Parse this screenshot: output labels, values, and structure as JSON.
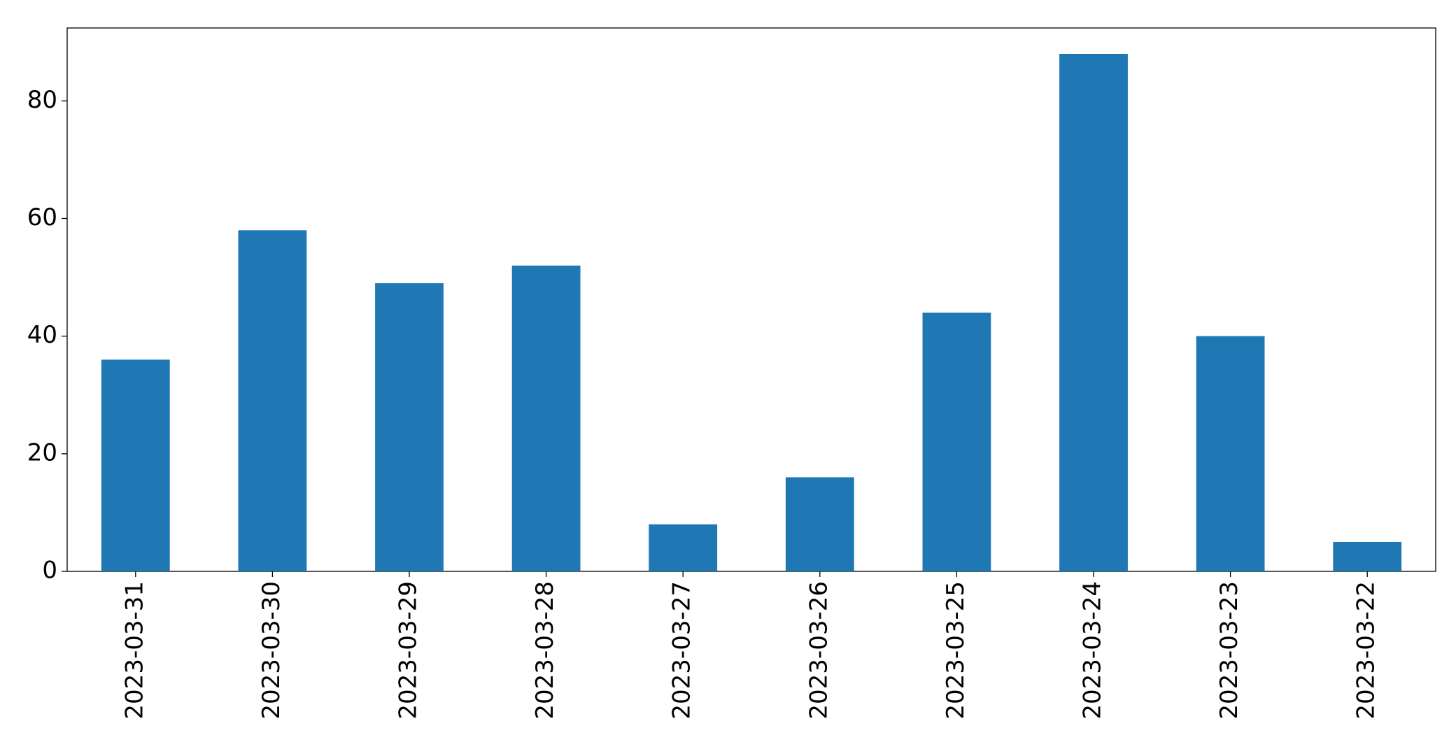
{
  "chart_data": {
    "type": "bar",
    "categories": [
      "2023-03-31",
      "2023-03-30",
      "2023-03-29",
      "2023-03-28",
      "2023-03-27",
      "2023-03-26",
      "2023-03-25",
      "2023-03-24",
      "2023-03-23",
      "2023-03-22"
    ],
    "values": [
      36,
      58,
      49,
      52,
      8,
      16,
      44,
      88,
      40,
      5
    ],
    "color": "#1f77b4",
    "ylim": [
      0,
      92.4
    ],
    "yticks": [
      0,
      20,
      40,
      60,
      80
    ],
    "grid": false
  }
}
